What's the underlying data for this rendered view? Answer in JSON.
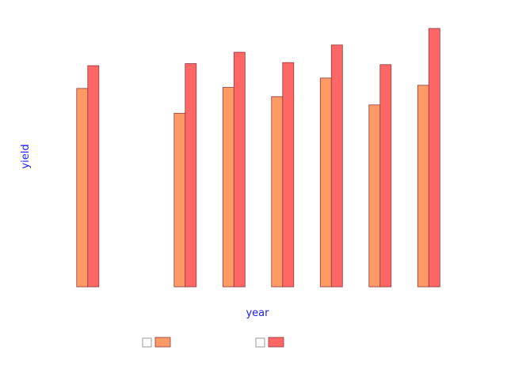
{
  "chart_data": {
    "type": "bar",
    "title": "",
    "xlabel": "year",
    "ylabel": "yield",
    "categories": [
      "",
      "",
      "",
      "",
      "",
      "",
      "",
      ""
    ],
    "series": [
      {
        "values": [
          96,
          null,
          84,
          96.5,
          92,
          101,
          88,
          97.5
        ],
        "color": "#ff9966"
      },
      {
        "values": [
          107,
          null,
          108,
          113.5,
          108.5,
          117,
          107.5,
          125
        ],
        "color": "#ff6666"
      }
    ],
    "ylim": [
      0,
      125
    ],
    "grid": false,
    "legend_position": "bottom",
    "bar_stroke": "#8b3a3a"
  }
}
